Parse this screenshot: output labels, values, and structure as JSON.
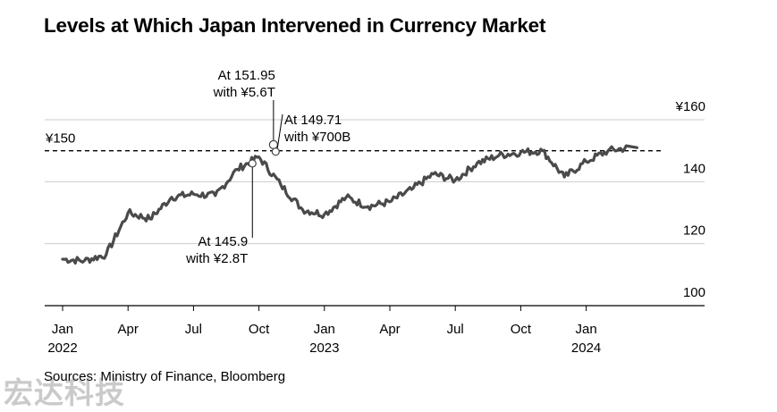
{
  "title": "Levels at Which Japan Intervened in Currency Market",
  "source": "Sources: Ministry of Finance, Bloomberg",
  "watermark": "宏达科技",
  "colors": {
    "line": "#4a4a4a",
    "grid": "#cccccc",
    "axis": "#000000",
    "text": "#000000"
  },
  "chart_data": {
    "type": "line",
    "title": "Levels at Which Japan Intervened in Currency Market",
    "ylim": [
      100,
      160
    ],
    "y_ticks": [
      {
        "value": 160,
        "label": "¥160"
      },
      {
        "value": 140,
        "label": "140"
      },
      {
        "value": 120,
        "label": "120"
      },
      {
        "value": 100,
        "label": "100"
      }
    ],
    "x_ticks": [
      {
        "label": "Jan",
        "sub": "2022"
      },
      {
        "label": "Apr",
        "sub": ""
      },
      {
        "label": "Jul",
        "sub": ""
      },
      {
        "label": "Oct",
        "sub": ""
      },
      {
        "label": "Jan",
        "sub": "2023"
      },
      {
        "label": "Apr",
        "sub": ""
      },
      {
        "label": "Jul",
        "sub": ""
      },
      {
        "label": "Oct",
        "sub": ""
      },
      {
        "label": "Jan",
        "sub": "2024"
      }
    ],
    "grid": true,
    "reference_line": {
      "value": 150,
      "label": "¥150",
      "style": "dashed"
    },
    "series": [
      {
        "x": [
          "2022-01",
          "2022-02",
          "2022-03",
          "2022-04",
          "2022-05",
          "2022-06",
          "2022-07",
          "2022-08",
          "2022-09",
          "2022-10",
          "2022-11",
          "2022-12",
          "2023-01",
          "2023-02",
          "2023-03",
          "2023-04",
          "2023-05",
          "2023-06",
          "2023-07",
          "2023-08",
          "2023-09",
          "2023-10",
          "2023-11",
          "2023-12",
          "2024-01",
          "2024-02",
          "2024-03"
        ],
        "values": [
          115.0,
          114.5,
          116.5,
          130.0,
          128.0,
          135.0,
          136.0,
          135.5,
          144.0,
          148.0,
          139.0,
          131.0,
          129.5,
          135.0,
          132.0,
          133.5,
          137.5,
          142.5,
          140.5,
          146.0,
          148.5,
          149.5,
          150.0,
          141.5,
          146.5,
          150.0,
          151.0
        ]
      }
    ],
    "annotations": [
      {
        "text": [
          "At 145.9",
          "with ¥2.8T"
        ],
        "x": "2022-09-22",
        "y": 145.9
      },
      {
        "text": [
          "At 151.95",
          "with ¥5.6T"
        ],
        "x": "2022-10-21",
        "y": 151.95
      },
      {
        "text": [
          "At 149.71",
          "with ¥700B"
        ],
        "x": "2022-10-24",
        "y": 149.71
      }
    ]
  }
}
